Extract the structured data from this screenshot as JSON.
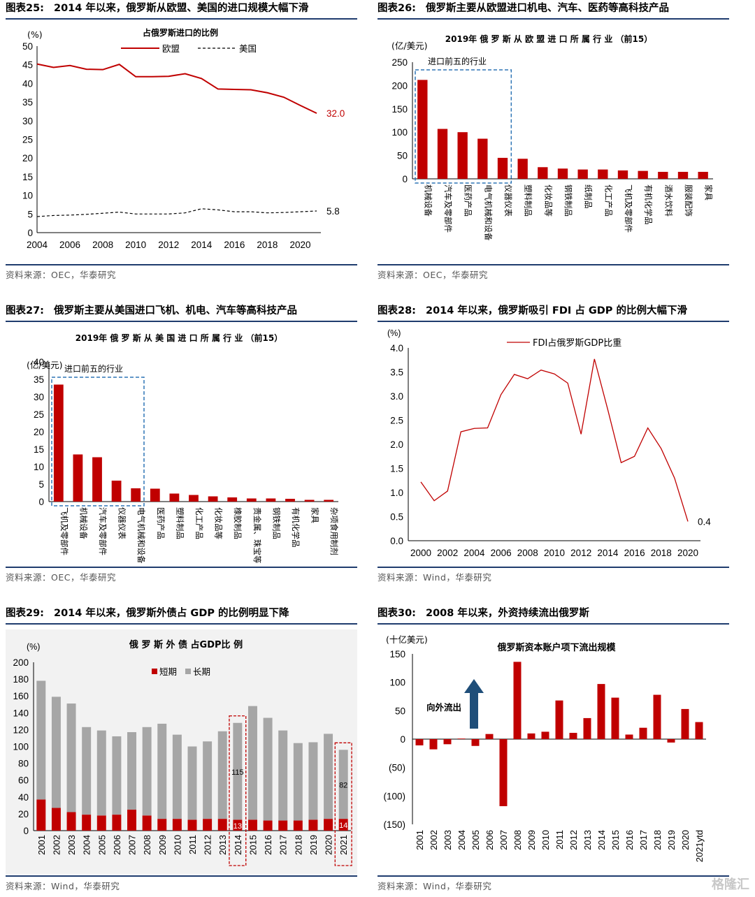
{
  "watermark": "格隆汇",
  "panels": [
    {
      "id": "p25",
      "num": "图表25:",
      "title": "2014 年以来，俄罗斯从欧盟、美国的进口规模大幅下滑",
      "source": "资料来源：OEC，华泰研究"
    },
    {
      "id": "p26",
      "num": "图表26:",
      "title": "俄罗斯主要从欧盟进口机电、汽车、医药等高科技产品",
      "source": "资料来源：OEC，华泰研究"
    },
    {
      "id": "p27",
      "num": "图表27:",
      "title": "俄罗斯主要从美国进口飞机、机电、汽车等高科技产品",
      "source": "资料来源：OEC，华泰研究"
    },
    {
      "id": "p28",
      "num": "图表28:",
      "title": "2014 年以来，俄罗斯吸引 FDI 占 GDP 的比例大幅下滑",
      "source": "资料来源：Wind，华泰研究"
    },
    {
      "id": "p29",
      "num": "图表29:",
      "title": "2014 年以来，俄罗斯外债占 GDP 的比例明显下降",
      "source": "资料来源：Wind，华泰研究"
    },
    {
      "id": "p30",
      "num": "图表30:",
      "title": "2008 年以来，外资持续流出俄罗斯",
      "source": "资料来源：Wind，华泰研究"
    }
  ],
  "chart_data": [
    {
      "id": "c25",
      "type": "line",
      "title": "占俄罗斯进口的比例",
      "ylabel": "(%)",
      "ylim": [
        0,
        50
      ],
      "yticks": [
        0,
        5,
        10,
        15,
        20,
        25,
        30,
        35,
        40,
        45,
        50
      ],
      "xticks": [
        2004,
        2006,
        2008,
        2010,
        2012,
        2014,
        2016,
        2018,
        2020
      ],
      "x": [
        2004,
        2005,
        2006,
        2007,
        2008,
        2009,
        2010,
        2011,
        2012,
        2013,
        2014,
        2015,
        2016,
        2017,
        2018,
        2019,
        2020,
        2021
      ],
      "series": [
        {
          "name": "欧盟",
          "color": "#c00000",
          "dash": false,
          "values": [
            45.2,
            44.3,
            44.8,
            43.8,
            43.7,
            45.1,
            41.8,
            41.8,
            41.9,
            42.6,
            41.3,
            38.5,
            38.4,
            38.3,
            37.5,
            36.3,
            34.1,
            32.0
          ]
        },
        {
          "name": "美国",
          "color": "#000000",
          "dash": true,
          "values": [
            4.3,
            4.6,
            4.7,
            4.9,
            5.2,
            5.5,
            5.0,
            5.0,
            5.0,
            5.3,
            6.4,
            6.1,
            5.6,
            5.6,
            5.3,
            5.4,
            5.6,
            5.8
          ]
        }
      ],
      "end_labels": [
        "32.0",
        "5.8"
      ],
      "legend": "top"
    },
    {
      "id": "c26",
      "type": "bar",
      "title": "2019年 俄 罗 斯 从 欧 盟 进 口 所 属 行 业 （前15）",
      "ylabel": "(亿/美元)",
      "ylim": [
        0,
        250
      ],
      "yticks": [
        0,
        50,
        100,
        150,
        200,
        250
      ],
      "box_label": "进口前五的行业",
      "box_count": 5,
      "categories": [
        "机械设备",
        "汽车及零部件",
        "医药产品",
        "电气机械和设备",
        "仪器仪表",
        "塑料制品",
        "化妆品等",
        "钢铁制品",
        "纸制品",
        "化工产品",
        "飞机及零部件",
        "有机化学品",
        "酒水饮料",
        "服装配饰",
        "家具"
      ],
      "values": [
        212,
        107,
        100,
        86,
        45,
        43,
        25,
        22,
        20,
        20,
        18,
        17,
        15,
        15,
        15
      ],
      "color": "#c00000"
    },
    {
      "id": "c27",
      "type": "bar",
      "title": "2019年 俄 罗 斯 从 美 国 进 口 所 属 行 业 （前15）",
      "ylabel": "(亿/美元)",
      "ylim": [
        0,
        40
      ],
      "yticks": [
        0,
        5,
        10,
        15,
        20,
        25,
        30,
        35,
        40
      ],
      "box_label": "进口前五的行业",
      "box_count": 5,
      "categories": [
        "飞机及零部件",
        "机械设备",
        "汽车及零部件",
        "仪器仪表",
        "电气机械和设备",
        "医药产品",
        "塑料制品",
        "化工产品",
        "化妆品等",
        "橡胶制品",
        "贵金属、珠宝等",
        "钢铁制品",
        "有机化学品",
        "家具",
        "杂项食用制剂"
      ],
      "values": [
        33.5,
        13.5,
        12.7,
        6.0,
        3.8,
        3.7,
        2.3,
        1.9,
        1.5,
        1.2,
        0.9,
        0.9,
        0.8,
        0.5,
        0.5
      ],
      "color": "#c00000"
    },
    {
      "id": "c28",
      "type": "line",
      "ylabel": "(%)",
      "ylim": [
        0,
        4
      ],
      "yticks": [
        "0.0",
        "0.5",
        "1.0",
        "1.5",
        "2.0",
        "2.5",
        "3.0",
        "3.5",
        "4.0"
      ],
      "xticks": [
        2000,
        2002,
        2004,
        2006,
        2008,
        2010,
        2012,
        2014,
        2016,
        2018,
        2020
      ],
      "x": [
        2000,
        2001,
        2002,
        2003,
        2004,
        2005,
        2006,
        2007,
        2008,
        2009,
        2010,
        2011,
        2012,
        2013,
        2014,
        2015,
        2016,
        2017,
        2018,
        2019,
        2020
      ],
      "series": [
        {
          "name": "FDI占俄罗斯GDP比重",
          "color": "#c00000",
          "values": [
            1.22,
            0.83,
            1.03,
            2.26,
            2.33,
            2.34,
            3.03,
            3.45,
            3.36,
            3.54,
            3.46,
            3.27,
            2.21,
            3.77,
            2.72,
            1.62,
            1.75,
            2.34,
            1.91,
            1.3,
            0.4
          ]
        }
      ],
      "end_labels": [
        "0.4"
      ],
      "legend": "top"
    },
    {
      "id": "c29",
      "type": "bar",
      "title": "俄 罗 斯 外 债 占GDP比 例",
      "ylabel": "(%)",
      "ylim": [
        0,
        200
      ],
      "yticks": [
        0,
        20,
        40,
        60,
        80,
        100,
        120,
        140,
        160,
        180,
        200
      ],
      "categories": [
        "2001",
        "2002",
        "2003",
        "2004",
        "2005",
        "2006",
        "2007",
        "2008",
        "2009",
        "2010",
        "2011",
        "2012",
        "2013",
        "2014",
        "2015",
        "2016",
        "2017",
        "2018",
        "2019",
        "2020",
        "2021"
      ],
      "series": [
        {
          "name": "短期",
          "color": "#c00000",
          "values": [
            37,
            27,
            22,
            19,
            18,
            19,
            25,
            18,
            14,
            14,
            13,
            14,
            14,
            13,
            13,
            12,
            12,
            12,
            13,
            14,
            14
          ]
        },
        {
          "name": "长期",
          "color": "#a6a6a6",
          "values": [
            141,
            132,
            129,
            104,
            101,
            93,
            92,
            105,
            113,
            100,
            87,
            92,
            104,
            115,
            135,
            122,
            107,
            92,
            92,
            101,
            82
          ]
        }
      ],
      "annotations": [
        {
          "category": "2014",
          "short": "13",
          "long": "115"
        },
        {
          "category": "2021",
          "short": "14",
          "long": "82"
        }
      ],
      "legend": "top-center"
    },
    {
      "id": "c30",
      "type": "bar",
      "title": "俄罗斯资本账户项下流出规模",
      "ylabel": "(十亿美元)",
      "ylim": [
        -150,
        150
      ],
      "yticks": [
        "150",
        "100",
        "50",
        "0",
        "(50)",
        "(100)",
        "(150)"
      ],
      "ytick_values": [
        150,
        100,
        50,
        0,
        -50,
        -100,
        -150
      ],
      "categories": [
        "2001",
        "2002",
        "2003",
        "2004",
        "2005",
        "2006",
        "2007",
        "2008",
        "2009",
        "2010",
        "2011",
        "2012",
        "2013",
        "2014",
        "2015",
        "2016",
        "2017",
        "2018",
        "2019",
        "2020",
        "2021ytd"
      ],
      "values": [
        -11,
        -18,
        -9,
        1,
        -12,
        9,
        -118,
        136,
        10,
        13,
        68,
        11,
        37,
        97,
        73,
        8,
        20,
        78,
        -6,
        53,
        30
      ],
      "color": "#c00000",
      "arrow_label": "向外流出"
    }
  ]
}
